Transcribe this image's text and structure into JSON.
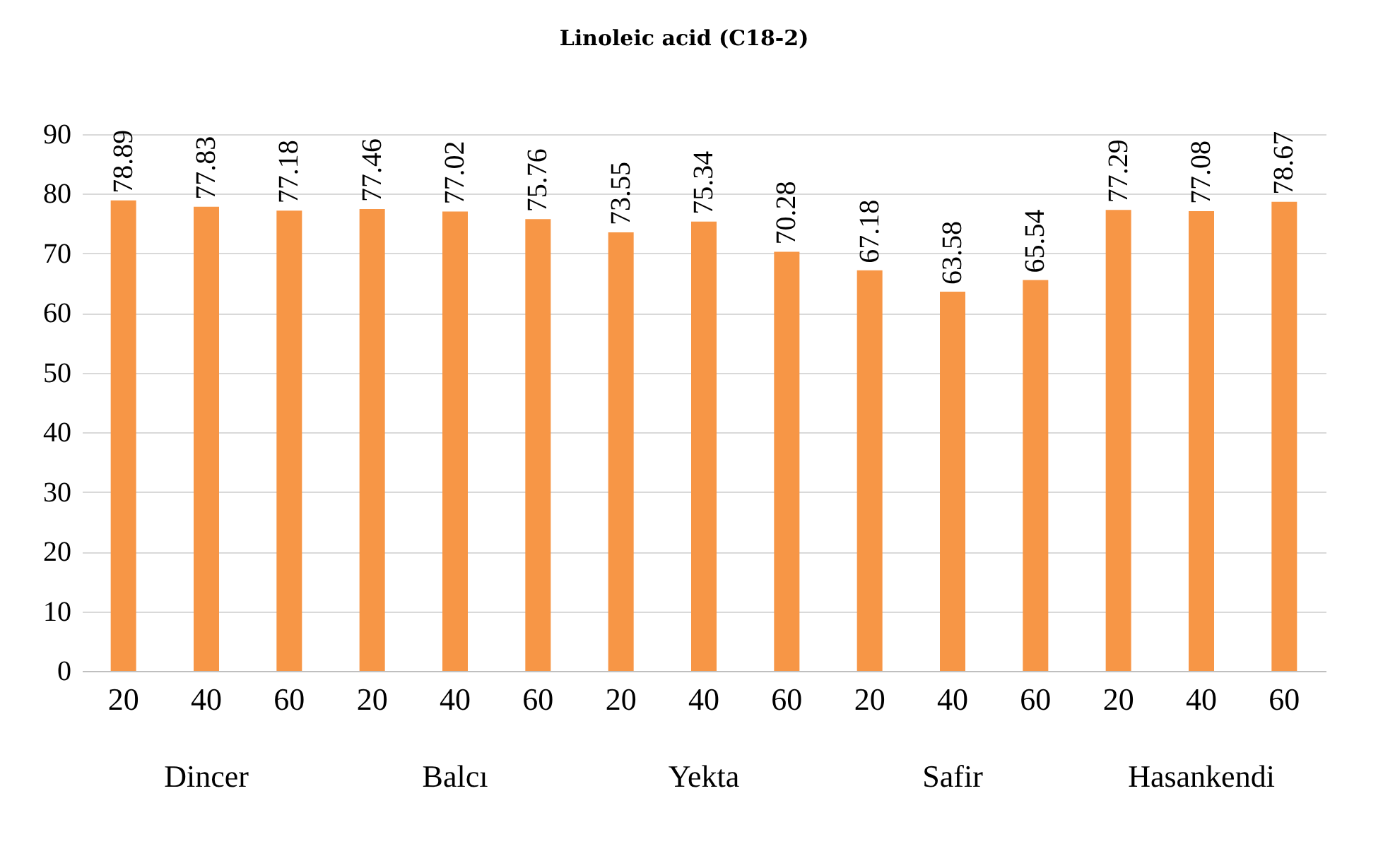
{
  "chart_data": {
    "type": "bar",
    "title": "Linoleic acid (C18-2)",
    "categories": [
      "20",
      "40",
      "60",
      "20",
      "40",
      "60",
      "20",
      "40",
      "60",
      "20",
      "40",
      "60",
      "20",
      "40",
      "60"
    ],
    "values": [
      78.89,
      77.83,
      77.18,
      77.46,
      77.02,
      75.76,
      73.55,
      75.34,
      70.28,
      67.18,
      63.58,
      65.54,
      77.29,
      77.08,
      78.67
    ],
    "color": "#f79646",
    "ylim": [
      0,
      90
    ],
    "yticks": [
      0,
      10,
      20,
      30,
      40,
      50,
      60,
      70,
      80,
      90
    ],
    "grid": "y",
    "data_labels": true,
    "annotations": [
      "Dincer",
      "Balcı",
      "Yekta",
      "Safir",
      "Hasankendi"
    ]
  }
}
